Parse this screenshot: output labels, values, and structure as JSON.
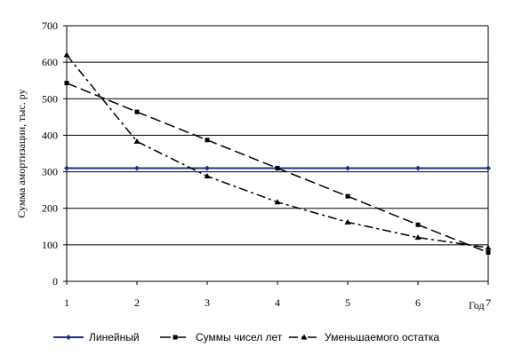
{
  "chart_data": {
    "type": "line",
    "x": [
      1,
      2,
      3,
      4,
      5,
      6,
      7
    ],
    "x_tick_labels": [
      "1",
      "2",
      "3",
      "4",
      "5",
      "6",
      "7"
    ],
    "xlabel": "Год",
    "ylabel": "Сумма амортизации, тыс. ру",
    "ylim": [
      0,
      700
    ],
    "y_ticks": [
      0,
      100,
      200,
      300,
      400,
      500,
      600,
      700
    ],
    "grid": "horizontal",
    "legend_position": "bottom",
    "series": [
      {
        "name": "Линейный",
        "values": [
          310,
          310,
          310,
          310,
          310,
          310,
          310
        ],
        "color": "#1f2f8f",
        "dash": "solid",
        "marker": "diamond"
      },
      {
        "name": "Суммы чисел лет",
        "values": [
          543,
          464,
          387,
          310,
          233,
          155,
          79
        ],
        "color": "#000000",
        "dash": "long-dash",
        "marker": "square"
      },
      {
        "name": "Уменьшаемого остатка",
        "values": [
          620,
          383,
          288,
          217,
          162,
          120,
          92
        ],
        "color": "#000000",
        "dash": "dash-dot",
        "marker": "triangle"
      }
    ]
  }
}
